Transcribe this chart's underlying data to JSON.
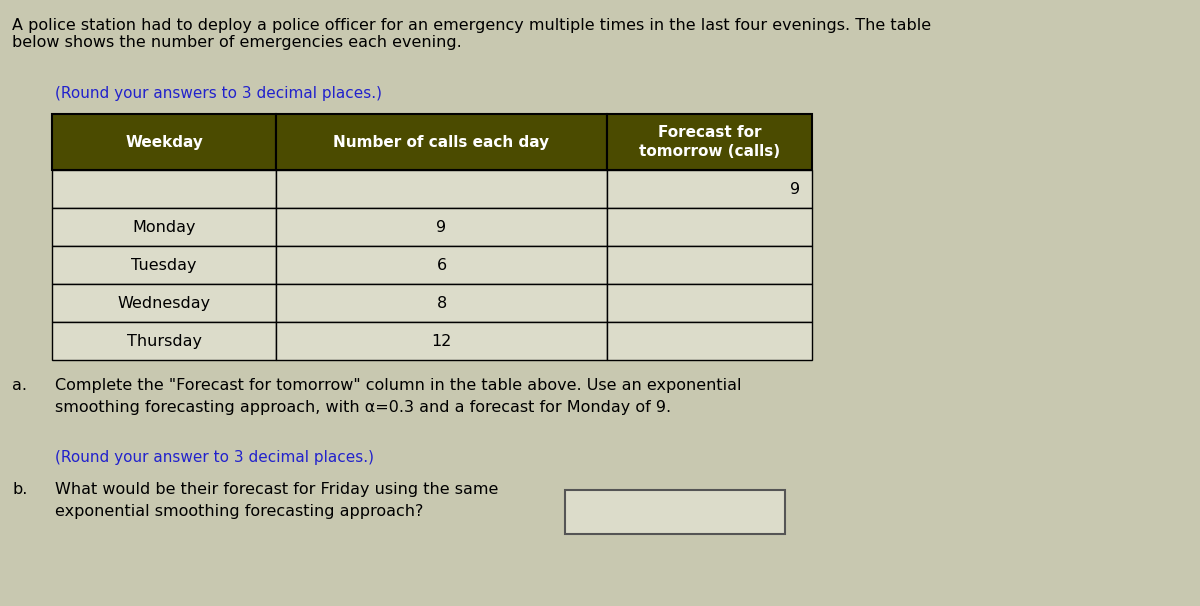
{
  "title_text": "A police station had to deploy a police officer for an emergency multiple times in the last four evenings. The table\nbelow shows the number of emergencies each evening.",
  "round_note": "(Round your answers to 3 decimal places.)",
  "col_headers": [
    "Weekday",
    "Number of calls each day",
    "Forecast for\ntomorrow (calls)"
  ],
  "rows": [
    [
      "",
      "",
      "9"
    ],
    [
      "Monday",
      "9",
      ""
    ],
    [
      "Tuesday",
      "6",
      ""
    ],
    [
      "Wednesday",
      "8",
      ""
    ],
    [
      "Thursday",
      "12",
      ""
    ]
  ],
  "header_bg": "#4b4b00",
  "header_text_color": "#ffffff",
  "row_bg": "#dcdcca",
  "table_border": "#000000",
  "part_a_label": "a.",
  "part_a_text": "Complete the \"Forecast for tomorrow\" column in the table above. Use an exponential\nsmoothing forecasting approach, with α=0.3 and a forecast for Monday of 9.",
  "part_b_round_note": "(Round your answer to 3 decimal places.)",
  "part_b_label": "b.",
  "part_b_text": "What would be their forecast for Friday using the same\nexponential smoothing forecasting approach?",
  "blue_color": "#2222cc",
  "text_color": "#000000",
  "bg_color": "#c8c8b0"
}
